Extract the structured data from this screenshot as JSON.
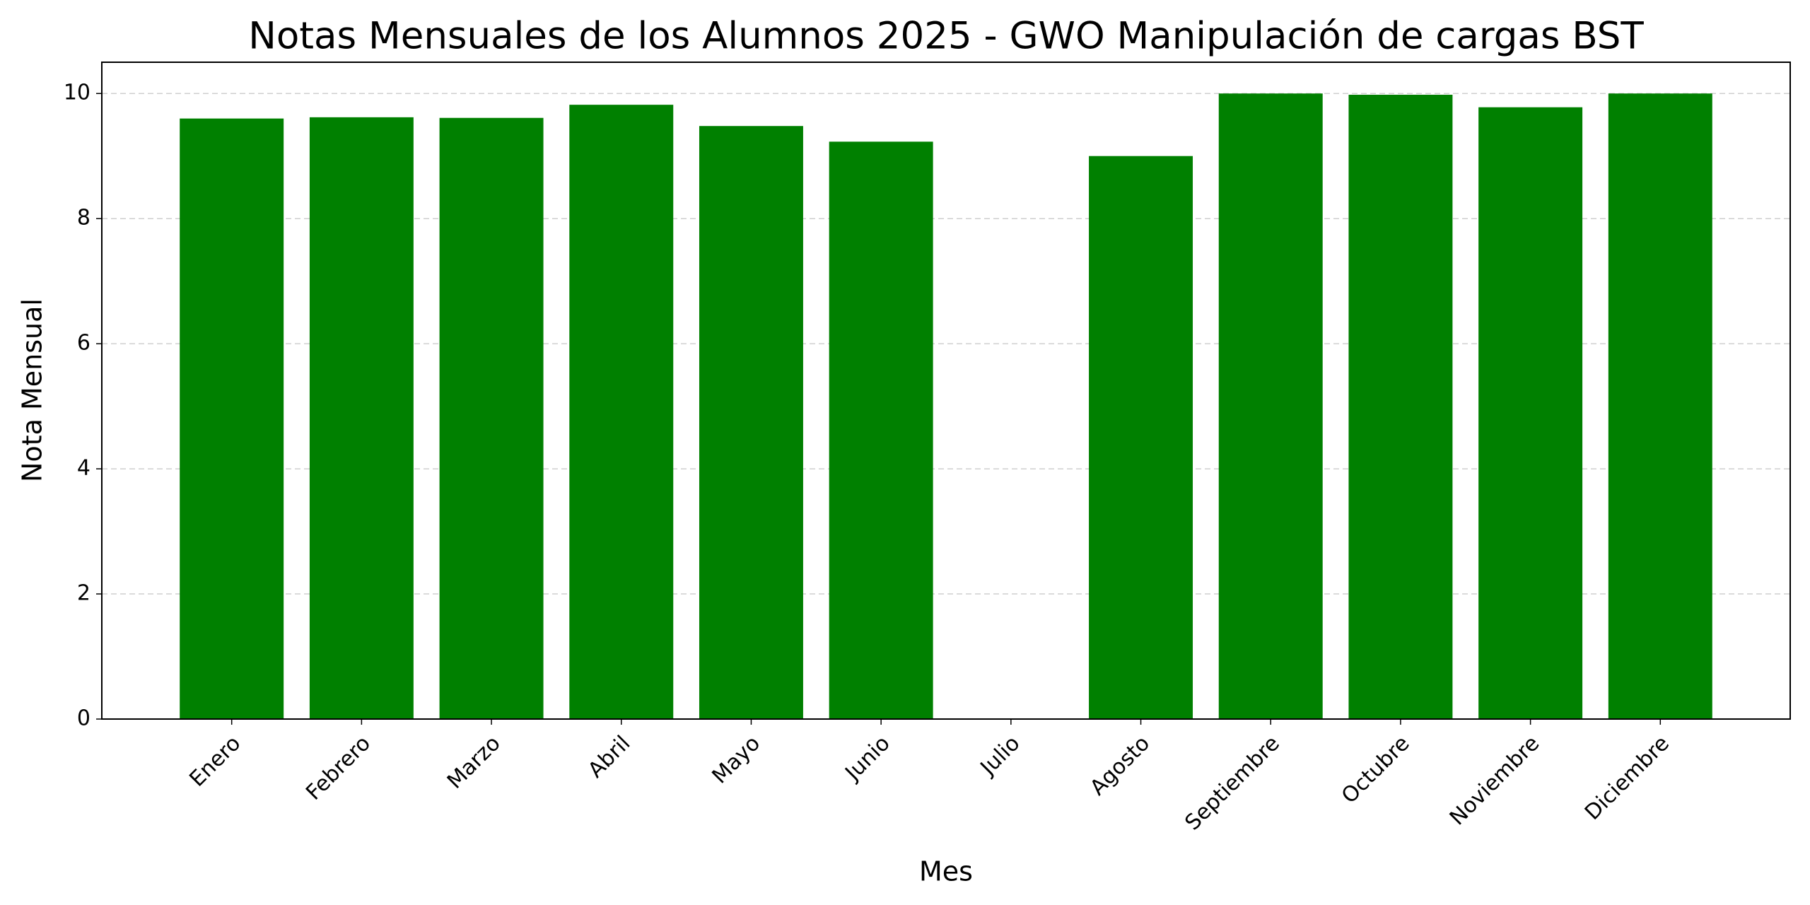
{
  "chart_data": {
    "type": "bar",
    "title": "Notas Mensuales de los Alumnos 2025 - GWO Manipulación de cargas BST",
    "x_label": "Mes",
    "y_label": "Nota Mensual",
    "categories": [
      "Enero",
      "Febrero",
      "Marzo",
      "Abril",
      "Mayo",
      "Junio",
      "Julio",
      "Agosto",
      "Septiembre",
      "Octubre",
      "Noviembre",
      "Diciembre"
    ],
    "values": [
      9.6,
      9.62,
      9.61,
      9.82,
      9.48,
      9.23,
      null,
      9.0,
      10.0,
      9.98,
      9.78,
      10.0
    ],
    "color": "#008000",
    "ylim": [
      0,
      10.5
    ],
    "yticks": [
      0,
      2,
      4,
      6,
      8,
      10
    ],
    "grid": true
  }
}
